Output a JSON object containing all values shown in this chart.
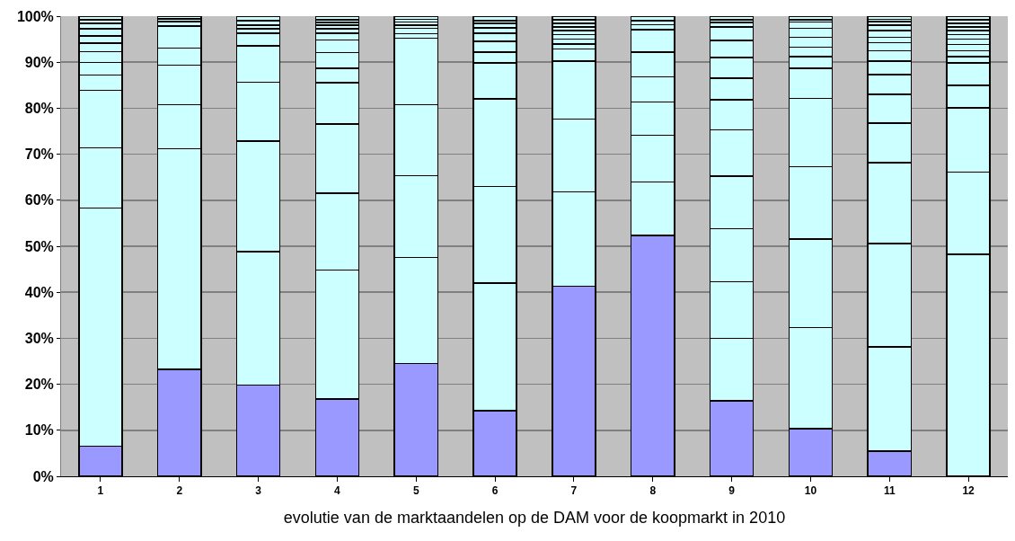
{
  "chart_data": {
    "type": "bar",
    "stacked": true,
    "xlabel": "evolutie van de marktaandelen op de DAM voor de koopmarkt in 2010",
    "categories": [
      "1",
      "2",
      "3",
      "4",
      "5",
      "6",
      "7",
      "8",
      "9",
      "10",
      "11",
      "12"
    ],
    "ylim": [
      0,
      100
    ],
    "yticks": [
      {
        "value": 0,
        "label": "0%"
      },
      {
        "value": 10,
        "label": "10%"
      },
      {
        "value": 20,
        "label": "20%"
      },
      {
        "value": 30,
        "label": "30%"
      },
      {
        "value": 40,
        "label": "40%"
      },
      {
        "value": 50,
        "label": "50%"
      },
      {
        "value": 60,
        "label": "60%"
      },
      {
        "value": 70,
        "label": "70%"
      },
      {
        "value": 80,
        "label": "80%"
      },
      {
        "value": 90,
        "label": "90%"
      },
      {
        "value": 100,
        "label": "100%"
      }
    ],
    "grid": "y",
    "series": [
      {
        "color": "#9999ff",
        "values": [
          6.5,
          23.2,
          19.8,
          16.8,
          24.5,
          14.3,
          41.3,
          52.3,
          16.4,
          10.4,
          5.5,
          0
        ]
      },
      {
        "color": "#ccffff",
        "values": [
          51.8,
          48,
          29,
          28,
          23.1,
          27.7,
          20.5,
          11.7,
          13.6,
          21.9,
          22.6,
          48.2
        ]
      },
      {
        "color": "#ccffff",
        "values": [
          13.1,
          9.6,
          24.1,
          16.7,
          17.7,
          21,
          15.8,
          10.1,
          12.3,
          19.3,
          22.5,
          17.9
        ]
      },
      {
        "color": "#ccffff",
        "values": [
          12.5,
          8.6,
          12.7,
          15.1,
          15.5,
          19,
          12.6,
          7.2,
          11.5,
          15.7,
          17.6,
          14
        ]
      },
      {
        "color": "#ccffff",
        "values": [
          3.3,
          3.7,
          8,
          8.9,
          14.4,
          7.8,
          2.7,
          5.5,
          11.4,
          14.8,
          8.6,
          4.9
        ]
      },
      {
        "color": "#ccffff",
        "values": [
          2.7,
          4.8,
          2.7,
          3.2,
          1,
          2.4,
          1,
          5.4,
          10.1,
          6.6,
          6.2,
          4.8
        ]
      },
      {
        "color": "#ccffff",
        "values": [
          2.4,
          0.9,
          1,
          3.4,
          1.2,
          2.3,
          1.1,
          4.9,
          6.5,
          2.5,
          4.3,
          1.4
        ]
      },
      {
        "color": "#ccffff",
        "values": [
          1.8,
          0.6,
          0.7,
          2.7,
          0.6,
          1.8,
          1,
          1,
          4.7,
          2.1,
          2.9,
          1.3
        ]
      },
      {
        "color": "#ccffff",
        "values": [
          1.6,
          0.6,
          1,
          1.5,
          0.7,
          1.2,
          0.9,
          0.9,
          4.5,
          2.1,
          2.3,
          1.3
        ]
      },
      {
        "color": "#ccffff",
        "values": [
          1.6,
          null,
          1,
          1,
          0.6,
          0.9,
          0.8,
          1,
          3.7,
          2,
          1.7,
          1.2
        ]
      },
      {
        "color": "#ccffff",
        "values": [
          1.1,
          null,
          null,
          0.7,
          0.7,
          0.6,
          0.7,
          null,
          3,
          1.3,
          1.2,
          1
        ]
      },
      {
        "color": "#ccffff",
        "values": [
          0.8,
          null,
          null,
          0.6,
          null,
          1,
          0.8,
          null,
          0.9,
          0.5,
          1.5,
          0.9
        ]
      },
      {
        "color": "#ccffff",
        "values": [
          0.8,
          null,
          null,
          0.6,
          null,
          null,
          0.8,
          null,
          0.6,
          0.8,
          1.1,
          0.8
        ]
      },
      {
        "color": "#ccffff",
        "values": [
          null,
          null,
          null,
          0.8,
          null,
          null,
          null,
          null,
          0.8,
          null,
          0.8,
          0.7
        ]
      },
      {
        "color": "#ccffff",
        "values": [
          null,
          null,
          null,
          null,
          null,
          null,
          null,
          null,
          null,
          null,
          0.5,
          0.8
        ]
      },
      {
        "color": "#ccffff",
        "values": [
          null,
          null,
          null,
          null,
          null,
          null,
          null,
          null,
          null,
          null,
          0.7,
          0.8
        ]
      }
    ]
  }
}
